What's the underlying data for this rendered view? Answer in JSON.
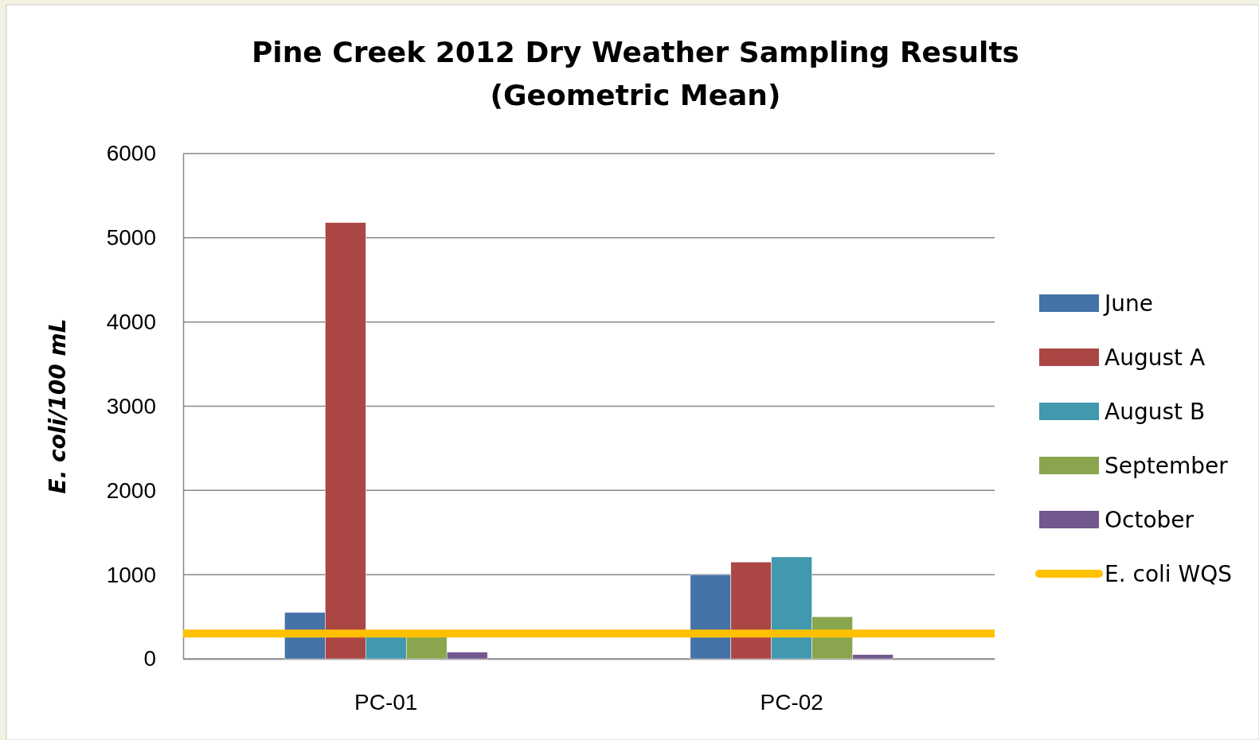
{
  "chart_data": {
    "type": "bar",
    "title": "Pine Creek 2012 Dry Weather Sampling Results",
    "subtitle": "(Geometric Mean)",
    "ylabel": "E. coli/100 mL",
    "categories": [
      "PC-01",
      "PC-02"
    ],
    "series": [
      {
        "name": "June",
        "color": "#4572a7",
        "values": [
          550,
          1000
        ]
      },
      {
        "name": "August A",
        "color": "#aa4643",
        "values": [
          5180,
          1150
        ]
      },
      {
        "name": "August B",
        "color": "#4198af",
        "values": [
          280,
          1210
        ]
      },
      {
        "name": "September",
        "color": "#89a54e",
        "values": [
          270,
          500
        ]
      },
      {
        "name": "October",
        "color": "#71588f",
        "values": [
          80,
          50
        ]
      }
    ],
    "ref_lines": [
      {
        "axis": "y",
        "value": 300,
        "label": "E. coli WQS",
        "color": "#ffc000"
      }
    ],
    "ylim": [
      0,
      6000
    ],
    "yticks": [
      0,
      1000,
      2000,
      3000,
      4000,
      5000,
      6000
    ],
    "grid": "y",
    "legend": "right"
  }
}
